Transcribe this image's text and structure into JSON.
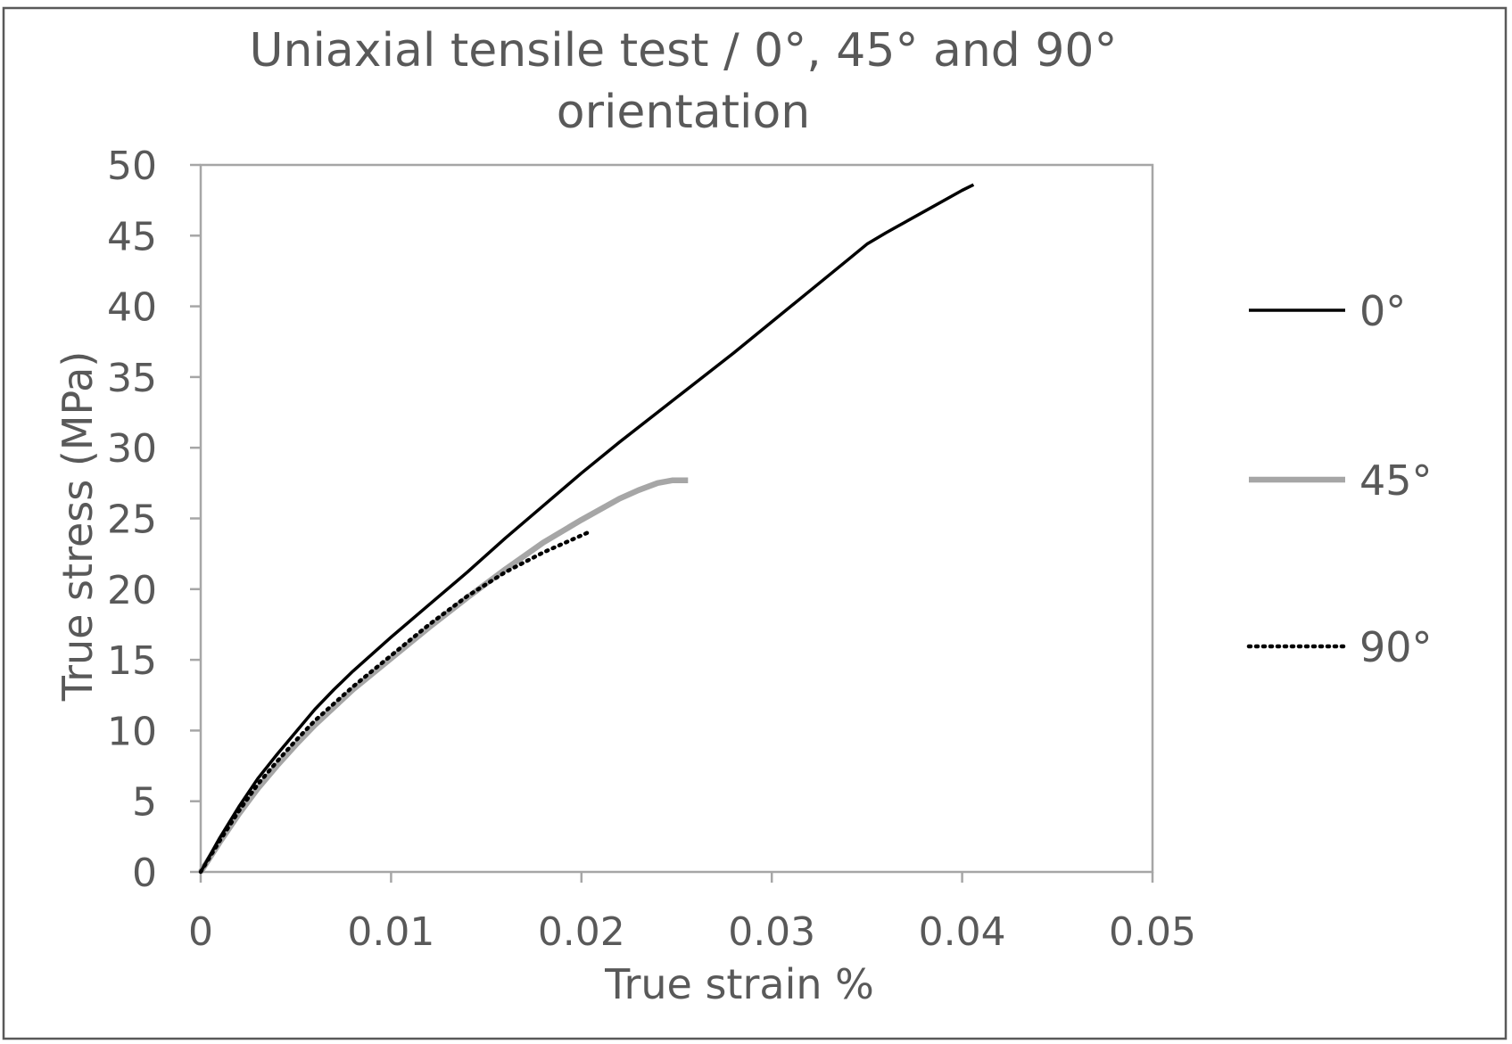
{
  "chart_data": {
    "type": "line",
    "title_lines": [
      "Uniaxial tensile test / 0°, 45° and 90°",
      "orientation"
    ],
    "xlabel": "True strain %",
    "ylabel": "True stress (MPa)",
    "xlim": [
      0,
      0.05
    ],
    "ylim": [
      0,
      50
    ],
    "x_ticks": [
      0,
      0.01,
      0.02,
      0.03,
      0.04,
      0.05
    ],
    "x_tick_labels": [
      "0",
      "0.01",
      "0.02",
      "0.03",
      "0.04",
      "0.05"
    ],
    "y_ticks": [
      0,
      5,
      10,
      15,
      20,
      25,
      30,
      35,
      40,
      45,
      50
    ],
    "y_tick_labels": [
      "0",
      "5",
      "10",
      "15",
      "20",
      "25",
      "30",
      "35",
      "40",
      "45",
      "50"
    ],
    "grid": false,
    "legend_position": "right",
    "series": [
      {
        "name": "0°",
        "color": "#000000",
        "style": "solid",
        "points": [
          [
            0,
            0
          ],
          [
            0.001,
            2.4
          ],
          [
            0.002,
            4.6
          ],
          [
            0.003,
            6.6
          ],
          [
            0.004,
            8.3
          ],
          [
            0.005,
            9.9
          ],
          [
            0.006,
            11.5
          ],
          [
            0.007,
            12.9
          ],
          [
            0.008,
            14.2
          ],
          [
            0.01,
            16.6
          ],
          [
            0.012,
            18.9
          ],
          [
            0.014,
            21.2
          ],
          [
            0.016,
            23.6
          ],
          [
            0.018,
            25.9
          ],
          [
            0.02,
            28.2
          ],
          [
            0.022,
            30.4
          ],
          [
            0.024,
            32.5
          ],
          [
            0.026,
            34.6
          ],
          [
            0.028,
            36.7
          ],
          [
            0.03,
            38.9
          ],
          [
            0.032,
            41.1
          ],
          [
            0.034,
            43.3
          ],
          [
            0.035,
            44.4
          ],
          [
            0.036,
            45.2
          ],
          [
            0.038,
            46.7
          ],
          [
            0.04,
            48.2
          ],
          [
            0.0406,
            48.6
          ]
        ]
      },
      {
        "name": "45°",
        "color": "#a6a6a6",
        "style": "solid",
        "points": [
          [
            0,
            0
          ],
          [
            0.001,
            2.1
          ],
          [
            0.002,
            4.1
          ],
          [
            0.003,
            5.9
          ],
          [
            0.004,
            7.5
          ],
          [
            0.005,
            9.0
          ],
          [
            0.006,
            10.4
          ],
          [
            0.008,
            12.9
          ],
          [
            0.01,
            15.1
          ],
          [
            0.012,
            17.3
          ],
          [
            0.014,
            19.4
          ],
          [
            0.016,
            21.4
          ],
          [
            0.018,
            23.3
          ],
          [
            0.02,
            24.9
          ],
          [
            0.022,
            26.4
          ],
          [
            0.023,
            27.0
          ],
          [
            0.024,
            27.5
          ],
          [
            0.0248,
            27.7
          ],
          [
            0.0256,
            27.7
          ]
        ]
      },
      {
        "name": "90°",
        "color": "#000000",
        "style": "dotted",
        "points": [
          [
            0,
            0
          ],
          [
            0.001,
            2.2
          ],
          [
            0.002,
            4.3
          ],
          [
            0.003,
            6.2
          ],
          [
            0.004,
            7.8
          ],
          [
            0.005,
            9.3
          ],
          [
            0.006,
            10.7
          ],
          [
            0.008,
            13.1
          ],
          [
            0.01,
            15.3
          ],
          [
            0.012,
            17.5
          ],
          [
            0.014,
            19.5
          ],
          [
            0.016,
            21.2
          ],
          [
            0.018,
            22.6
          ],
          [
            0.0205,
            24.1
          ]
        ]
      }
    ]
  }
}
